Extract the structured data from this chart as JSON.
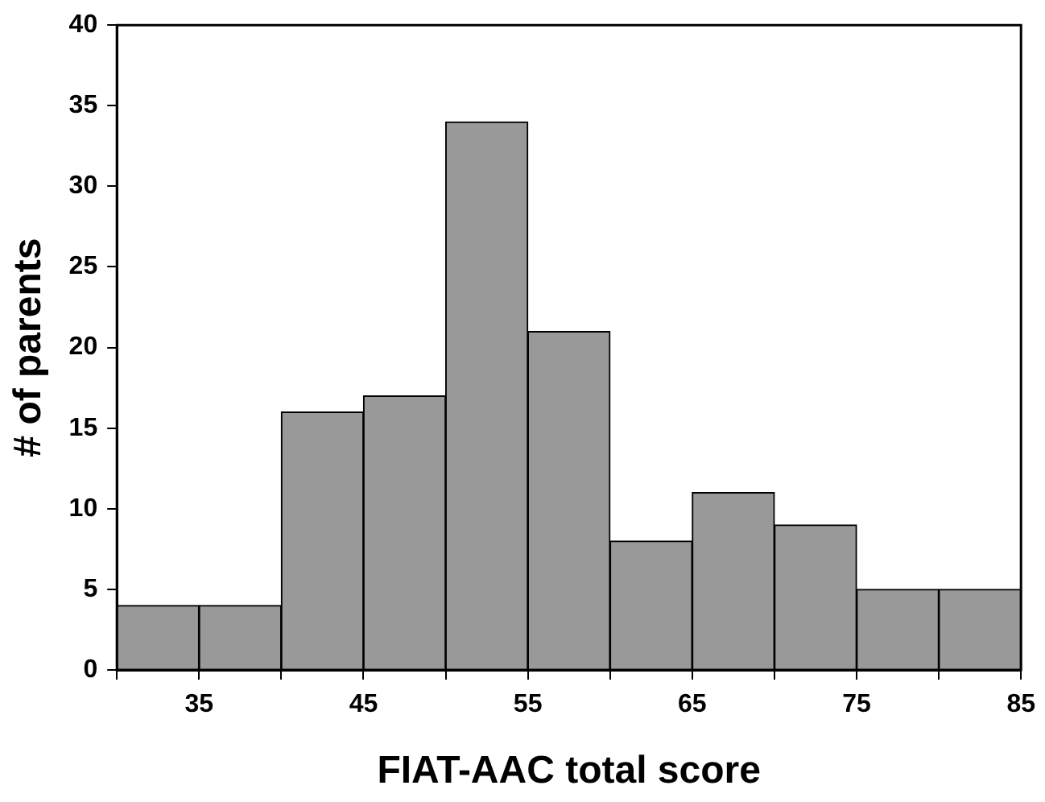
{
  "chart_data": {
    "type": "histogram",
    "xlabel": "FIAT-AAC total score",
    "ylabel": "# of parents",
    "bins": [
      30,
      35,
      40,
      45,
      50,
      55,
      60,
      65,
      70,
      75,
      80,
      85
    ],
    "values": [
      4,
      4,
      16,
      17,
      34,
      21,
      8,
      11,
      9,
      5,
      5
    ],
    "color": "#999999",
    "xlim": [
      30,
      85
    ],
    "xticks": [
      {
        "value": 30,
        "label": null
      },
      35,
      {
        "value": 40,
        "label": null
      },
      45,
      {
        "value": 50,
        "label": null
      },
      55,
      {
        "value": 60,
        "label": null
      },
      65,
      {
        "value": 70,
        "label": null
      },
      75,
      {
        "value": 80,
        "label": null
      },
      85
    ],
    "ylim": [
      0,
      40
    ],
    "yticks": [
      0,
      5,
      10,
      15,
      20,
      25,
      30,
      35,
      40
    ],
    "grid": false,
    "legend": false
  }
}
